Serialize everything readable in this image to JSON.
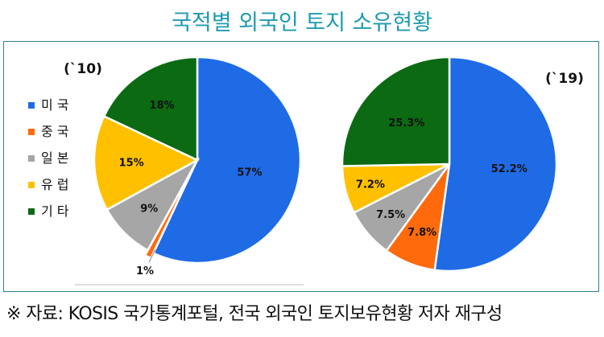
{
  "title": "국적별 외국인 토지 소유현황",
  "source": "※ 자료: KOSIS 국가통계포털, 전국 외국인 토지보유현황 저자 재구성",
  "colors": {
    "usa": "#1f6be6",
    "china": "#ff6a0c",
    "japan": "#a6a6a6",
    "europe": "#ffc000",
    "other": "#0b6a12",
    "frame": "#2d7f94",
    "title": "#1f9bb0"
  },
  "legend": [
    {
      "label": "미 국",
      "color": "#1f6be6"
    },
    {
      "label": "중 국",
      "color": "#ff6a0c"
    },
    {
      "label": "일 본",
      "color": "#a6a6a6"
    },
    {
      "label": "유 럽",
      "color": "#ffc000"
    },
    {
      "label": "기 타",
      "color": "#0b6a12"
    }
  ],
  "chart_data": [
    {
      "type": "pie",
      "title": "(`10)",
      "categories": [
        "미 국",
        "중 국",
        "일 본",
        "유 럽",
        "기 타"
      ],
      "values": [
        57,
        1,
        9,
        15,
        18
      ],
      "labels": [
        "57%",
        "1%",
        "9%",
        "15%",
        "18%"
      ],
      "legend_position": "left"
    },
    {
      "type": "pie",
      "title": "(`19)",
      "categories": [
        "미 국",
        "중 국",
        "일 본",
        "유 럽",
        "기 타"
      ],
      "values": [
        52.2,
        7.8,
        7.5,
        7.2,
        25.3
      ],
      "labels": [
        "52.2%",
        "7.8%",
        "7.5%",
        "7.2%",
        "25.3%"
      ]
    }
  ]
}
